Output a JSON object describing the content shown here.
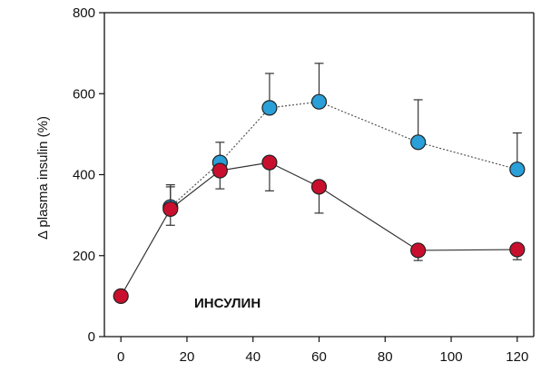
{
  "chart_data": {
    "type": "line",
    "ylabel": "Δ plasma insulin (%)",
    "xlabel": "",
    "xlim": [
      -5,
      125
    ],
    "ylim": [
      0,
      800
    ],
    "xticks": [
      0,
      20,
      40,
      60,
      80,
      100,
      120
    ],
    "yticks": [
      0,
      200,
      400,
      600,
      800
    ],
    "annotation": "ИНСУЛИН",
    "grid": false,
    "series": [
      {
        "color": "#2a9fd8",
        "line_style": "dotted",
        "x": [
          15,
          30,
          45,
          60,
          90,
          120
        ],
        "y": [
          320,
          430,
          565,
          580,
          480,
          413
        ],
        "err_upper": [
          50,
          50,
          85,
          95,
          105,
          90
        ],
        "err_lower": [
          0,
          0,
          0,
          0,
          0,
          0
        ]
      },
      {
        "color": "#c8102e",
        "line_style": "solid",
        "x": [
          0,
          15,
          30,
          45,
          60,
          90,
          120
        ],
        "y": [
          100,
          315,
          410,
          430,
          370,
          213,
          215
        ],
        "err_upper": [
          0,
          60,
          0,
          0,
          0,
          0,
          0
        ],
        "err_lower": [
          0,
          40,
          45,
          70,
          65,
          25,
          25
        ]
      }
    ]
  }
}
